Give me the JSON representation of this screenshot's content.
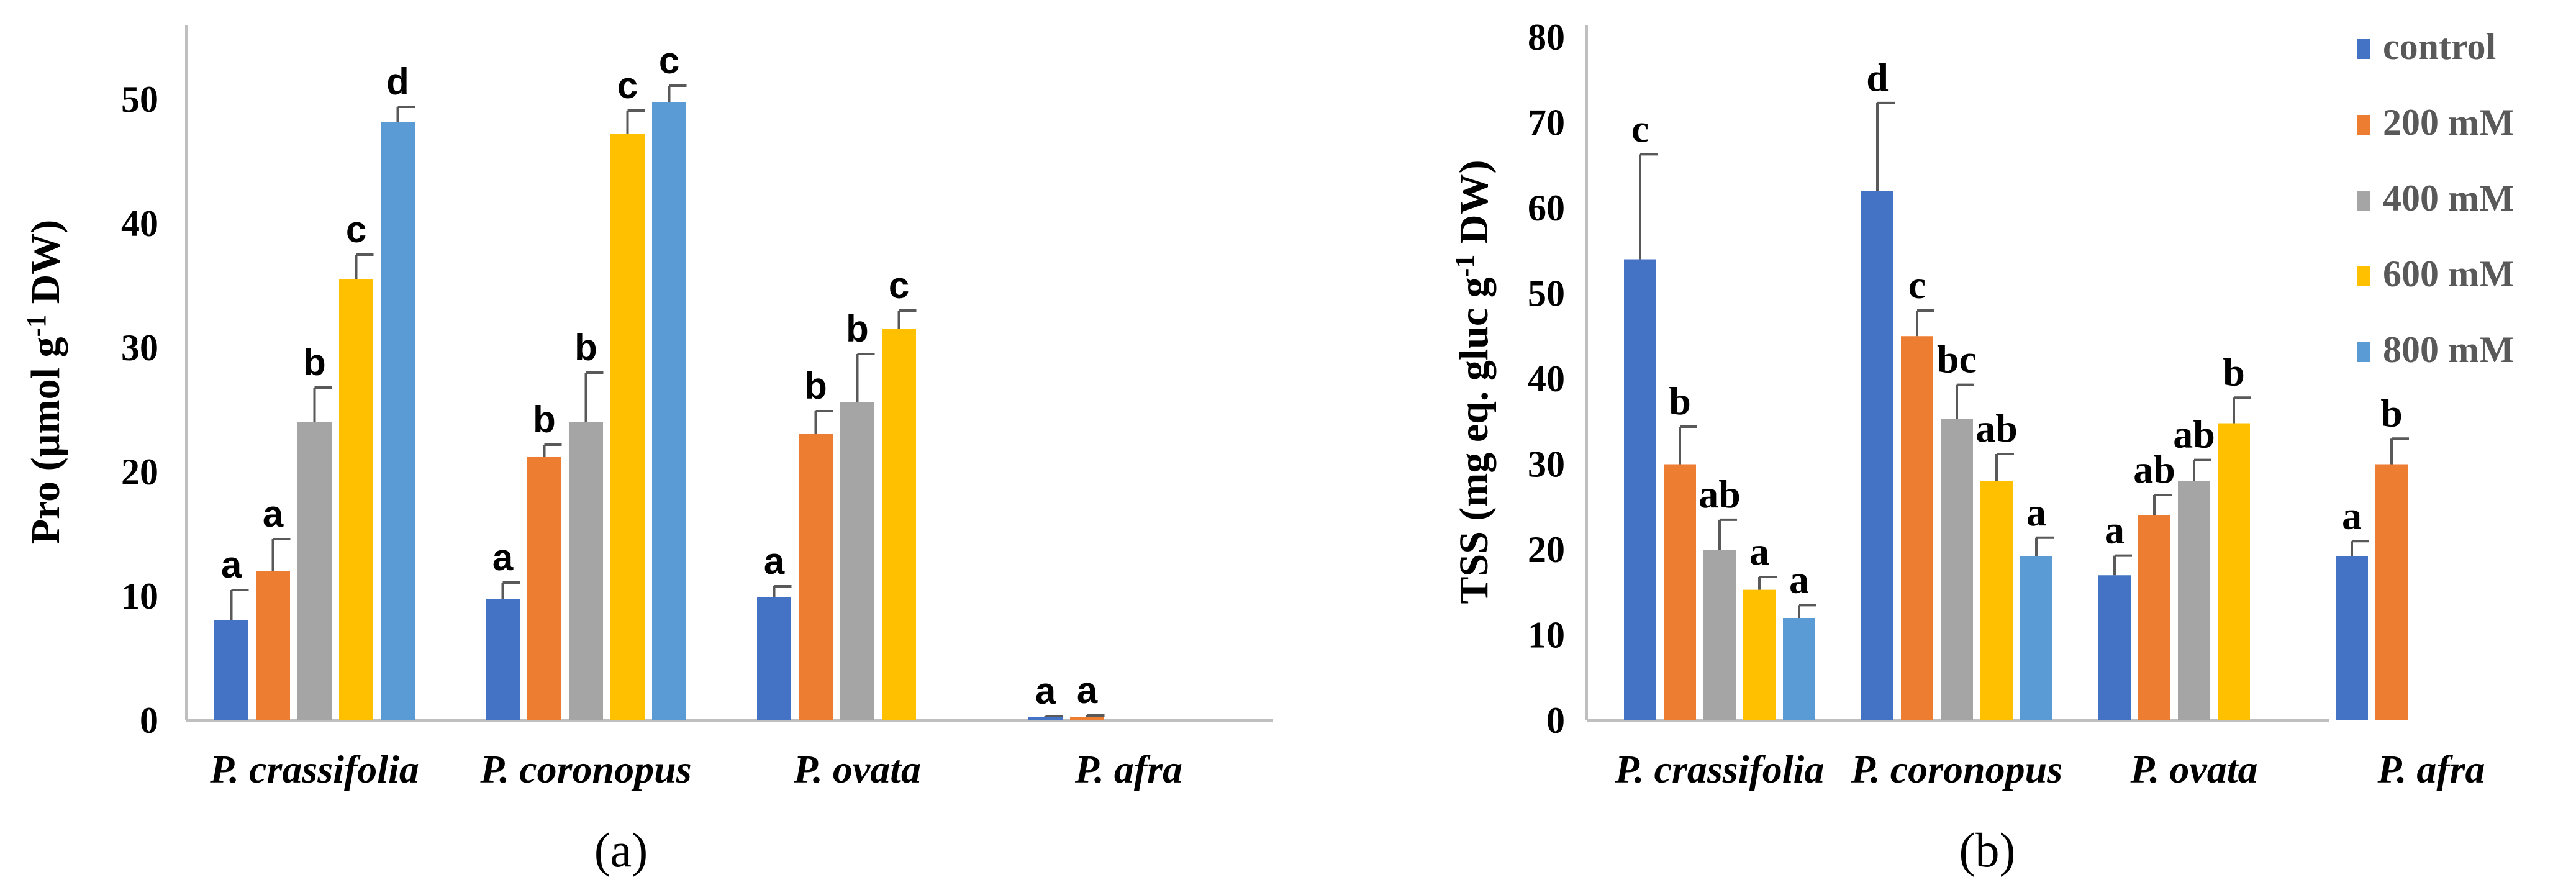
{
  "colors": {
    "control": "#4472c4",
    "200 mM": "#ed7d31",
    "400 mM": "#a5a5a5",
    "600 mM": "#ffc000",
    "800 mM": "#5b9bd5"
  },
  "chart_data": [
    {
      "type": "bar",
      "panel": "(a)",
      "title": "",
      "xlabel": "",
      "ylabel_parts": [
        "Pro (µmol g",
        "-1",
        " DW)"
      ],
      "ylim": [
        0,
        55
      ],
      "yticks": [
        0,
        10,
        20,
        30,
        40,
        50
      ],
      "categories": [
        "P. crassifolia",
        "P. coronopus",
        "P. ovata",
        "P. afra"
      ],
      "series": [
        {
          "name": "control",
          "values": [
            8.1,
            9.8,
            9.9,
            0.25
          ],
          "errors": [
            2.4,
            1.3,
            0.9,
            0.1
          ],
          "letters": [
            "a",
            "a",
            "a",
            "a"
          ]
        },
        {
          "name": "200 mM",
          "values": [
            12.0,
            21.2,
            23.1,
            0.3
          ],
          "errors": [
            2.6,
            1.0,
            1.8,
            0.1
          ],
          "letters": [
            "a",
            "b",
            "b",
            "a"
          ]
        },
        {
          "name": "400 mM",
          "values": [
            24.0,
            24.0,
            25.6,
            null
          ],
          "errors": [
            2.8,
            4.0,
            3.9,
            null
          ],
          "letters": [
            "b",
            "b",
            "b",
            ""
          ]
        },
        {
          "name": "600 mM",
          "values": [
            35.5,
            47.2,
            31.5,
            null
          ],
          "errors": [
            2.0,
            1.9,
            1.5,
            null
          ],
          "letters": [
            "c",
            "c",
            "c",
            ""
          ]
        },
        {
          "name": "800 mM",
          "values": [
            48.2,
            49.8,
            null,
            null
          ],
          "errors": [
            1.2,
            1.3,
            null,
            null
          ],
          "letters": [
            "d",
            "c",
            "",
            ""
          ]
        }
      ]
    },
    {
      "type": "bar",
      "panel": "(b)",
      "title": "",
      "xlabel": "",
      "ylabel_parts": [
        "TSS (mg eq. gluc g",
        "-1",
        " DW)"
      ],
      "ylim": [
        0,
        80
      ],
      "yticks": [
        0,
        10,
        20,
        30,
        40,
        50,
        60,
        70,
        80
      ],
      "categories": [
        "P. crassifolia",
        "P. coronopus",
        "P. ovata",
        "P. afra"
      ],
      "legend": {
        "position": "right",
        "labels": [
          "control",
          "200 mM",
          "400 mM",
          "600 mM",
          "800 mM"
        ]
      },
      "series": [
        {
          "name": "control",
          "values": [
            54.0,
            62.0,
            17.0,
            19.2
          ],
          "errors": [
            12.3,
            10.3,
            2.3,
            1.8
          ],
          "letters": [
            "c",
            "d",
            "a",
            "a"
          ]
        },
        {
          "name": "200 mM",
          "values": [
            30.0,
            45.0,
            24.0,
            30.0
          ],
          "errors": [
            4.4,
            3.0,
            2.4,
            3.0
          ],
          "letters": [
            "b",
            "c",
            "ab",
            "b"
          ]
        },
        {
          "name": "400 mM",
          "values": [
            20.0,
            35.3,
            28.0,
            null
          ],
          "errors": [
            3.5,
            4.0,
            2.5,
            null
          ],
          "letters": [
            "ab",
            "bc",
            "ab",
            ""
          ]
        },
        {
          "name": "600 mM",
          "values": [
            15.3,
            28.0,
            34.8,
            null
          ],
          "errors": [
            1.5,
            3.2,
            3.0,
            null
          ],
          "letters": [
            "a",
            "ab",
            "b",
            ""
          ]
        },
        {
          "name": "800 mM",
          "values": [
            12.0,
            19.2,
            null,
            null
          ],
          "errors": [
            1.5,
            2.2,
            null,
            null
          ],
          "letters": [
            "a",
            "a",
            "",
            ""
          ]
        }
      ]
    }
  ]
}
